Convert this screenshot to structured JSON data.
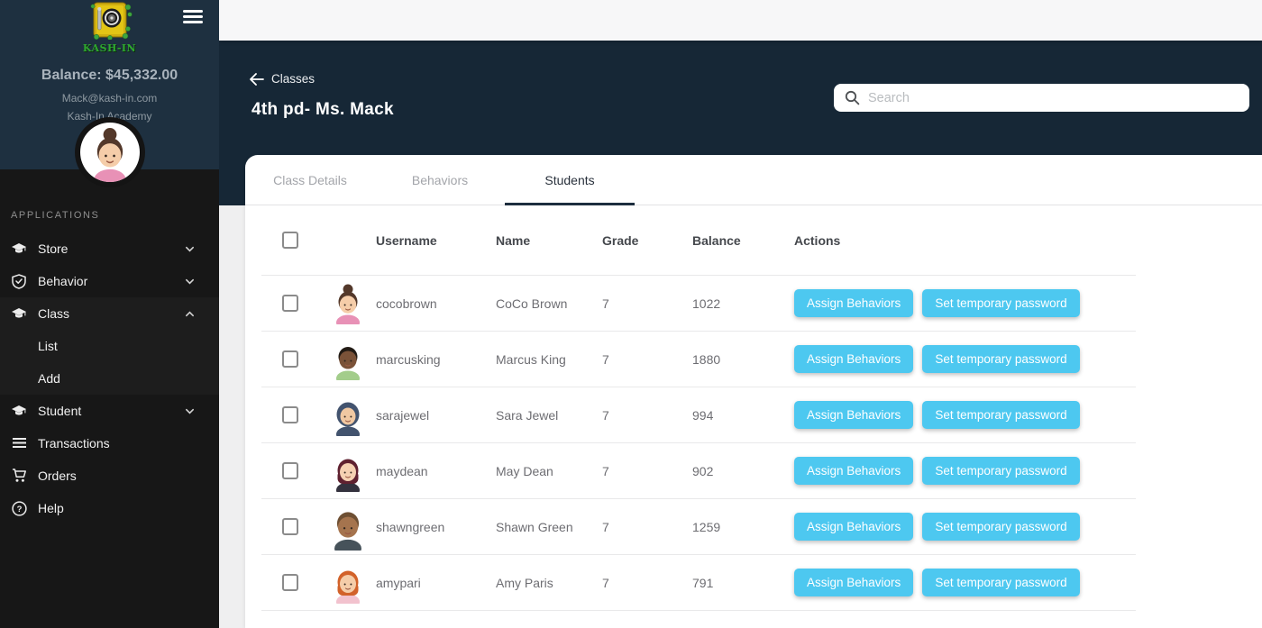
{
  "app": {
    "logo_text": "KASH-IN"
  },
  "sidebar": {
    "balance": "Balance: $45,332.00",
    "email": "Mack@kash-in.com",
    "academy": "Kash-In Academy",
    "section_label": "APPLICATIONS",
    "profile_avatar": "girl-bun-brown",
    "items": [
      {
        "label": "Store",
        "icon": "graduation-cap-icon",
        "chevron": "down"
      },
      {
        "label": "Behavior",
        "icon": "shield-check-icon",
        "chevron": "down"
      },
      {
        "label": "Class",
        "icon": "graduation-cap-icon",
        "chevron": "up",
        "children": [
          "List",
          "Add"
        ]
      },
      {
        "label": "Student",
        "icon": "graduation-cap-icon",
        "chevron": "down"
      },
      {
        "label": "Transactions",
        "icon": "list-icon"
      },
      {
        "label": "Orders",
        "icon": "cart-icon"
      },
      {
        "label": "Help",
        "icon": "help-icon"
      }
    ]
  },
  "header": {
    "breadcrumb": "Classes",
    "title": "4th pd- Ms. Mack",
    "search_placeholder": "Search"
  },
  "tabs": [
    {
      "label": "Class Details",
      "active": false
    },
    {
      "label": "Behaviors",
      "active": false
    },
    {
      "label": "Students",
      "active": true
    }
  ],
  "table": {
    "columns": {
      "username": "Username",
      "name": "Name",
      "grade": "Grade",
      "balance": "Balance",
      "actions": "Actions"
    },
    "actions": {
      "assign": "Assign Behaviors",
      "set_password": "Set temporary password"
    },
    "rows": [
      {
        "username": "cocobrown",
        "name": "CoCo Brown",
        "grade": "7",
        "balance": "1022",
        "avatar": "girl-bun-brown"
      },
      {
        "username": "marcusking",
        "name": "Marcus King",
        "grade": "7",
        "balance": "1880",
        "avatar": "boy-dark-green-shirt"
      },
      {
        "username": "sarajewel",
        "name": "Sara Jewel",
        "grade": "7",
        "balance": "994",
        "avatar": "girl-hijab-navy"
      },
      {
        "username": "maydean",
        "name": "May Dean",
        "grade": "7",
        "balance": "902",
        "avatar": "girl-maroon-hair"
      },
      {
        "username": "shawngreen",
        "name": "Shawn Green",
        "grade": "7",
        "balance": "1259",
        "avatar": "boy-tan-short-hair"
      },
      {
        "username": "amypari",
        "name": "Amy Paris",
        "grade": "7",
        "balance": "791",
        "avatar": "girl-orange-hair"
      }
    ]
  },
  "colors": {
    "accent": "#4dc8f0",
    "sidebar_top": "#1e3040",
    "header_band": "#162736",
    "tab_underline": "#1d2d3e"
  }
}
